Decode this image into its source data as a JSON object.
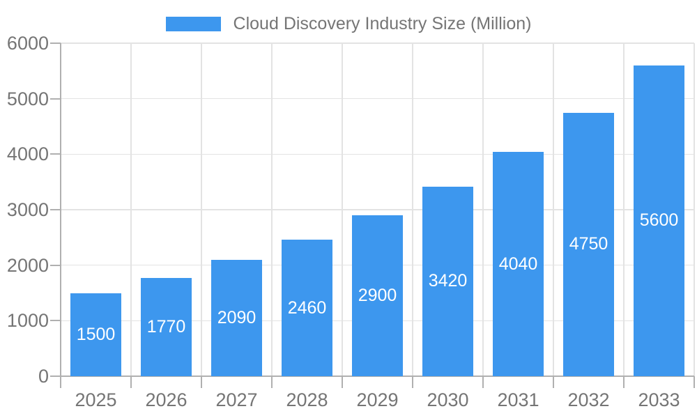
{
  "chart_data": {
    "type": "bar",
    "title": "",
    "legend": "Cloud Discovery Industry Size (Million)",
    "legend_position": "top-center",
    "categories": [
      "2025",
      "2026",
      "2027",
      "2028",
      "2029",
      "2030",
      "2031",
      "2032",
      "2033"
    ],
    "values": [
      1500,
      1770,
      2090,
      2460,
      2900,
      3420,
      4040,
      4750,
      5600
    ],
    "xlabel": "",
    "ylabel": "",
    "ylim": [
      0,
      6000
    ],
    "yticks": [
      0,
      1000,
      2000,
      3000,
      4000,
      5000,
      6000
    ],
    "grid": true,
    "bar_value_labels": "inside-center",
    "colors": {
      "bar": "#3d97ee",
      "tick_text": "#757575",
      "bar_label_text": "#ffffff",
      "gridline": "#e3e3e3",
      "axis": "#b0b0b0",
      "background": "#ffffff"
    }
  }
}
